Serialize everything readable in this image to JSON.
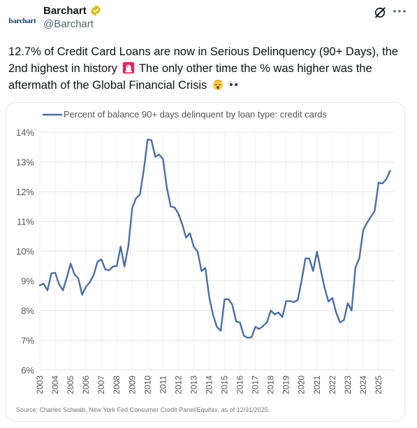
{
  "author": {
    "avatar_text": "barchart",
    "display_name": "Barchart",
    "handle": "@Barchart"
  },
  "icons": {
    "verified": "verified-badge-icon",
    "grok": "grok-icon",
    "more": "more-icon",
    "emoji_siren": "siren-icon",
    "emoji_mind_blown": "mind-blown-icon",
    "emoji_eyes": "eyes-icon"
  },
  "tweet": {
    "text_part1": "12.7% of Credit Card Loans are now in Serious Delinquency (90+ Days), the 2nd highest in history",
    "text_part2": " The only other time the % was higher was the aftermath of the Global Financial Crisis"
  },
  "colors": {
    "line": "#4a6fa5",
    "verified_gold": "#e2b719",
    "text": "#0f1419",
    "muted": "#536471"
  },
  "chart_data": {
    "type": "line",
    "legend": "Percent of balance 90+ days delinquent by loan type: credit cards",
    "legend_placement": "top-left",
    "source": "Source: Charles Schwab, New York Fed Consumer Credit Panel/Equifax, as of 12/31/2025.",
    "ylim": [
      6,
      14
    ],
    "xlim": [
      2003,
      2026
    ],
    "y_ticks": [
      "6%",
      "7%",
      "8%",
      "9%",
      "10%",
      "11%",
      "12%",
      "13%",
      "14%"
    ],
    "x_ticks": [
      "2003",
      "2004",
      "2005",
      "2006",
      "2007",
      "2008",
      "2009",
      "2010",
      "2011",
      "2012",
      "2013",
      "2014",
      "2015",
      "2016",
      "2017",
      "2018",
      "2019",
      "2020",
      "2021",
      "2022",
      "2023",
      "2024",
      "2025"
    ],
    "grid": true,
    "series": [
      {
        "x": [
          2003.0,
          2003.25,
          2003.5,
          2003.75,
          2004.0,
          2004.25,
          2004.5,
          2004.75,
          2005.0,
          2005.25,
          2005.5,
          2005.75,
          2006.0,
          2006.25,
          2006.5,
          2006.75,
          2007.0,
          2007.25,
          2007.5,
          2007.75,
          2008.0,
          2008.25,
          2008.5,
          2008.75,
          2009.0,
          2009.25,
          2009.5,
          2009.75,
          2010.0,
          2010.25,
          2010.5,
          2010.75,
          2011.0,
          2011.25,
          2011.5,
          2011.75,
          2012.0,
          2012.25,
          2012.5,
          2012.75,
          2013.0,
          2013.25,
          2013.5,
          2013.75,
          2014.0,
          2014.25,
          2014.5,
          2014.75,
          2015.0,
          2015.25,
          2015.5,
          2015.75,
          2016.0,
          2016.25,
          2016.5,
          2016.75,
          2017.0,
          2017.25,
          2017.5,
          2017.75,
          2018.0,
          2018.25,
          2018.5,
          2018.75,
          2019.0,
          2019.25,
          2019.5,
          2019.75,
          2020.0,
          2020.25,
          2020.5,
          2020.75,
          2021.0,
          2021.25,
          2021.5,
          2021.75,
          2022.0,
          2022.25,
          2022.5,
          2022.75,
          2023.0,
          2023.25,
          2023.5,
          2023.75,
          2024.0,
          2024.25,
          2024.5,
          2024.75,
          2025.0,
          2025.25,
          2025.5,
          2025.75
        ],
        "y": [
          8.85,
          8.9,
          8.68,
          9.25,
          9.27,
          8.88,
          8.68,
          9.1,
          9.58,
          9.22,
          9.08,
          8.53,
          8.8,
          8.95,
          9.2,
          9.65,
          9.72,
          9.38,
          9.35,
          9.48,
          9.5,
          10.15,
          9.48,
          10.18,
          11.45,
          11.78,
          11.9,
          12.72,
          13.75,
          13.73,
          13.17,
          13.25,
          13.1,
          12.13,
          11.5,
          11.47,
          11.26,
          10.9,
          10.45,
          10.6,
          10.15,
          9.98,
          9.33,
          9.43,
          8.45,
          7.85,
          7.45,
          7.32,
          8.38,
          8.38,
          8.2,
          7.63,
          7.6,
          7.15,
          7.08,
          7.1,
          7.45,
          7.38,
          7.48,
          7.6,
          8.0,
          7.87,
          7.93,
          7.78,
          8.32,
          8.32,
          8.28,
          8.35,
          9.0,
          9.75,
          9.75,
          9.33,
          9.98,
          9.35,
          8.75,
          8.3,
          8.42,
          7.93,
          7.6,
          7.68,
          8.25,
          8.0,
          9.45,
          9.75,
          10.7,
          10.95,
          11.15,
          11.35,
          12.3,
          12.27,
          12.42,
          12.7
        ]
      }
    ]
  }
}
